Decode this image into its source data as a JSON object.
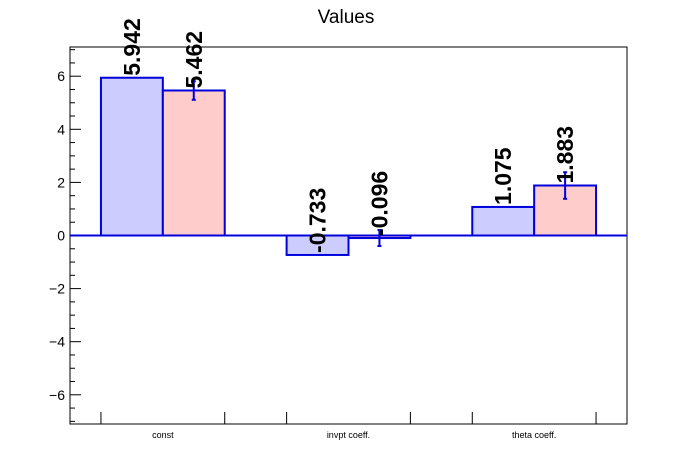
{
  "chart_data": {
    "type": "bar",
    "title": "Values",
    "xlabel": "",
    "ylabel": "",
    "categories": [
      "const",
      "invpt coeff.",
      "theta coeff."
    ],
    "series": [
      {
        "values": [
          5.942,
          -0.733,
          1.075
        ],
        "errors": [
          0,
          0,
          0
        ],
        "labels": [
          "5.942",
          "-0.733",
          "1.075"
        ],
        "fill_color": "#ccccff",
        "edge_color": "#0000dd"
      },
      {
        "values": [
          5.462,
          -0.096,
          1.883
        ],
        "errors": [
          0.35,
          0.3,
          0.5
        ],
        "labels": [
          "5.462",
          "-0.096",
          "1.883"
        ],
        "fill_color": "#ffcccc",
        "edge_color": "#0000dd"
      }
    ],
    "ylim": [
      -7.1,
      7.1
    ],
    "y_ticks": [
      -6,
      -4,
      -2,
      0,
      2,
      4,
      6
    ],
    "y_tick_labels": [
      "−6",
      "−4",
      "−2",
      "0",
      "2",
      "4",
      "6"
    ],
    "zero_line_color": "#0000dd",
    "grid": false,
    "legend": "none"
  }
}
